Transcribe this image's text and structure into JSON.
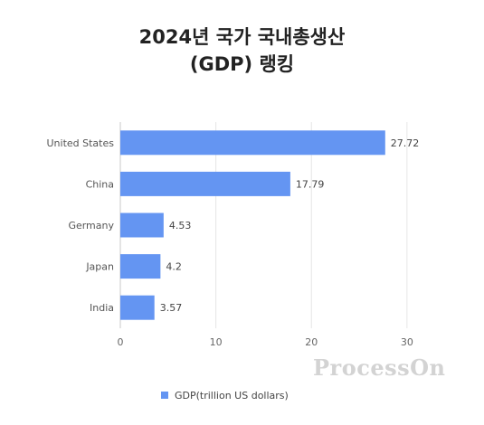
{
  "chart_data": {
    "type": "bar",
    "orientation": "horizontal",
    "title_line1": "2024년 국가 국내총생산",
    "title_line2": "(GDP) 랭킹",
    "categories": [
      "United States",
      "China",
      "Germany",
      "Japan",
      "India"
    ],
    "series": [
      {
        "name": "GDP(trillion US dollars)",
        "values": [
          27.72,
          17.79,
          4.53,
          4.2,
          3.57
        ]
      }
    ],
    "value_labels": [
      "27.72",
      "17.79",
      "4.53",
      "4.2",
      "3.57"
    ],
    "xticks": [
      0,
      10,
      20,
      30
    ],
    "xlim": [
      0,
      32
    ],
    "grid": true,
    "legend": "bottom",
    "bar_color": "#6495f2"
  },
  "watermark": "ProcessOn"
}
